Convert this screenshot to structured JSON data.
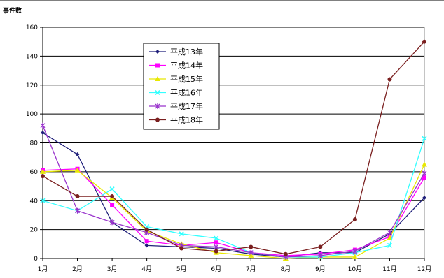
{
  "chart_data": {
    "type": "line",
    "ylabel": "事件数",
    "categories": [
      "1月",
      "2月",
      "3月",
      "4月",
      "5月",
      "6月",
      "7月",
      "8月",
      "9月",
      "10月",
      "11月",
      "12月"
    ],
    "ylim": [
      0,
      160
    ],
    "yticks": [
      0,
      20,
      40,
      60,
      80,
      100,
      120,
      140,
      160
    ],
    "grid": true,
    "legend_position": "top-center",
    "series": [
      {
        "name": "平成13年",
        "color": "#1f1f7a",
        "marker": "diamond",
        "values": [
          87,
          72,
          25,
          9,
          8,
          7,
          3,
          1,
          4,
          4,
          17,
          42
        ]
      },
      {
        "name": "平成14年",
        "color": "#ff00ff",
        "marker": "square",
        "values": [
          61,
          62,
          37,
          12,
          9,
          11,
          4,
          2,
          3,
          6,
          15,
          56
        ]
      },
      {
        "name": "平成15年",
        "color": "#e8e800",
        "marker": "triangle",
        "values": [
          60,
          61,
          42,
          19,
          10,
          4,
          2,
          0,
          1,
          1,
          14,
          65
        ]
      },
      {
        "name": "平成16年",
        "color": "#33ffff",
        "marker": "x",
        "values": [
          40,
          33,
          48,
          22,
          17,
          14,
          4,
          1,
          1,
          4,
          9,
          83
        ]
      },
      {
        "name": "平成17年",
        "color": "#9933cc",
        "marker": "asterisk",
        "values": [
          92,
          33,
          25,
          18,
          9,
          8,
          4,
          1,
          2,
          5,
          18,
          59
        ]
      },
      {
        "name": "平成18年",
        "color": "#7a1f1f",
        "marker": "circle",
        "values": [
          57,
          43,
          43,
          20,
          7,
          5,
          8,
          3,
          8,
          27,
          124,
          150
        ]
      }
    ]
  }
}
